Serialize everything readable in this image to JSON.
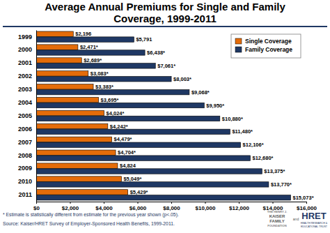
{
  "chart_data": {
    "type": "bar",
    "title": "Average Annual Premiums for Single and Family Coverage, 1999-2011",
    "orientation": "horizontal",
    "categories": [
      "1999",
      "2000",
      "2001",
      "2002",
      "2003",
      "2004",
      "2005",
      "2006",
      "2007",
      "2008",
      "2009",
      "2010",
      "2011"
    ],
    "series": [
      {
        "name": "Single Coverage",
        "color": "#e46c0a",
        "values": [
          2196,
          2471,
          2689,
          3083,
          3383,
          3695,
          4024,
          4242,
          4479,
          4704,
          4824,
          5049,
          5429
        ],
        "value_labels": [
          "$2,196",
          "$2,471*",
          "$2,689*",
          "$3,083*",
          "$3,383*",
          "$3,695*",
          "$4,024*",
          "$4,242*",
          "$4,479*",
          "$4,704*",
          "$4,824",
          "$5,049*",
          "$5,429*"
        ]
      },
      {
        "name": "Family Coverage",
        "color": "#1f3864",
        "values": [
          5791,
          6438,
          7061,
          8003,
          9068,
          9950,
          10880,
          11480,
          12106,
          12680,
          13375,
          13770,
          15073
        ],
        "value_labels": [
          "$5,791",
          "$6,438*",
          "$7,061*",
          "$8,003*",
          "$9,068*",
          "$9,950*",
          "$10,880*",
          "$11,480*",
          "$12,106*",
          "$12,680*",
          "$13,375*",
          "$13,770*",
          "$15,073*"
        ]
      }
    ],
    "xlim": [
      0,
      16000
    ],
    "xticks": [
      {
        "value": 0,
        "label": "$0"
      },
      {
        "value": 2000,
        "label": "$2,000"
      },
      {
        "value": 4000,
        "label": "$4,000"
      },
      {
        "value": 6000,
        "label": "$6,000"
      },
      {
        "value": 8000,
        "label": "$8,000"
      },
      {
        "value": 10000,
        "label": "$10,000"
      },
      {
        "value": 12000,
        "label": "$12,000"
      },
      {
        "value": 14000,
        "label": "$14,000"
      },
      {
        "value": 16000,
        "label": "$16,000"
      }
    ],
    "grid": false,
    "legend": "upper right",
    "data_labels": true,
    "annotations": [
      "* Estimate is statistically different from estimate for the previous year shown (p<.05).",
      "Source: Kaiser/HRET Survey of Employer-Sponsored Health Benefits, 1999-2011.",
      "THE HENRY J.",
      "KAISER",
      "FAMILY",
      "FOUNDATION",
      "and",
      "HRET",
      "HEALTH RESEARCH &",
      "EDUCATIONAL TRUST"
    ]
  }
}
